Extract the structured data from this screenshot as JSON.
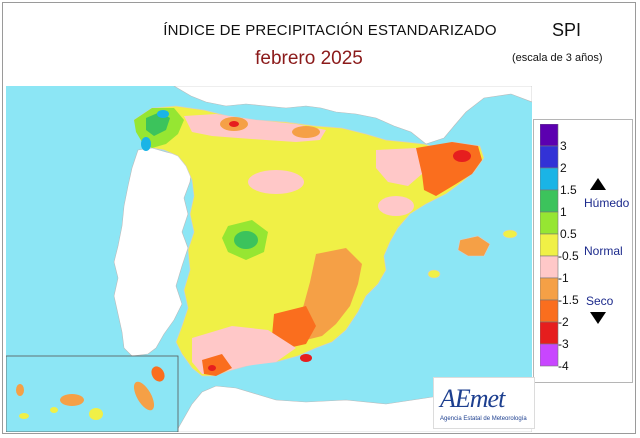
{
  "header": {
    "title": "ÍNDICE DE PRECIPITACIÓN ESTANDARIZADO",
    "period": "febrero  2025",
    "index": "SPI",
    "scale": "(escala de 3 años)"
  },
  "legend": {
    "ticks": [
      "3",
      "2",
      "1.5",
      "1",
      "0.5",
      "-0.5",
      "-1",
      "-1.5",
      "-2",
      "-3",
      "-4"
    ],
    "classes": [
      "#5c00b0",
      "#3232d6",
      "#1ab4e6",
      "#3cc35c",
      "#96e632",
      "#f0f046",
      "#ffc8c8",
      "#f5a046",
      "#fa6e1e",
      "#e61e1e",
      "#c846ff"
    ],
    "wet_label": "Húmedo",
    "normal_label": "Normal",
    "dry_label": "Seco"
  },
  "colors": {
    "sea": "#8ce6f5",
    "land_foreign": "#ffffff",
    "accent_title": "#8b1a1a"
  },
  "logo": {
    "word": "AEmet",
    "caption": "Agencia Estatal de Meteorología"
  }
}
